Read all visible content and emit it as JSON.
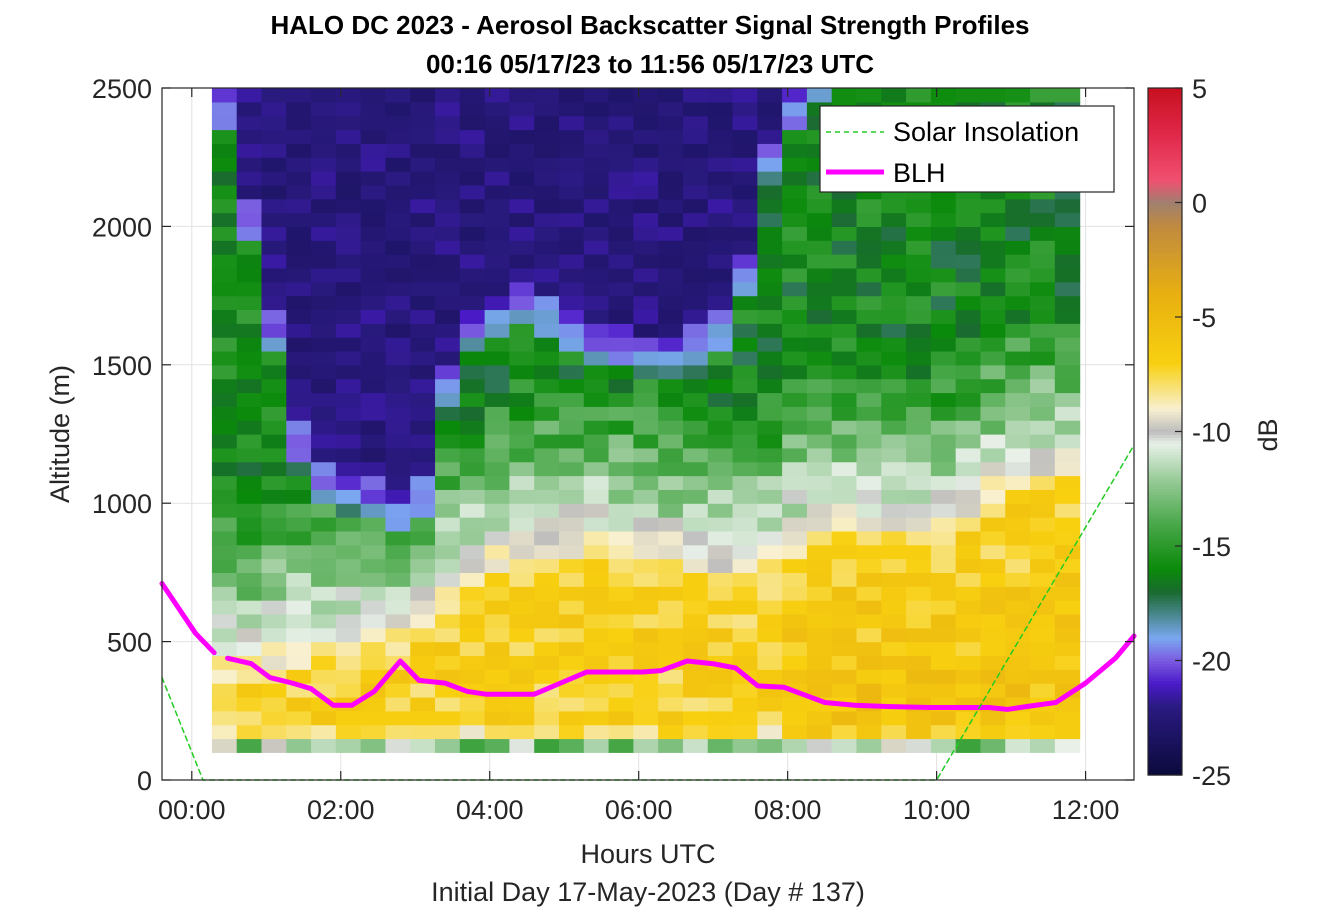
{
  "chart_data": {
    "type": "heatmap",
    "title": "HALO DC 2023 - Aerosol Backscatter Signal Strength Profiles",
    "subtitle": "00:16 05/17/23 to 11:56 05/17/23  UTC",
    "xlabel": "Hours UTC",
    "footer": "Initial Day 17-May-2023 (Day # 137)",
    "ylabel": "Altitude (m)",
    "colorbar_label": "dB",
    "xlim": [
      -0.4,
      12.65
    ],
    "ylim": [
      0,
      2500
    ],
    "xticks": [
      0,
      2,
      4,
      6,
      8,
      10,
      12
    ],
    "xtick_labels": [
      "00:00",
      "02:00",
      "04:00",
      "06:00",
      "08:00",
      "10:00",
      "12:00"
    ],
    "yticks": [
      0,
      500,
      1000,
      1500,
      2000,
      2500
    ],
    "ytick_labels": [
      "0",
      "500",
      "1000",
      "1500",
      "2000",
      "2500"
    ],
    "clim": [
      -25,
      5
    ],
    "cticks": [
      5,
      0,
      -5,
      -10,
      -15,
      -20,
      -25
    ],
    "ctick_labels": [
      "5",
      "0",
      "-5",
      "-10",
      "-15",
      "-20",
      "-25"
    ],
    "grid": true,
    "legend_position": "top-right",
    "legend": [
      "Solar Insolation",
      "BLH"
    ],
    "heatmap_extent": {
      "x": [
        0.27,
        11.92
      ],
      "y": [
        100,
        2500
      ]
    },
    "time_bins": 35,
    "altitude_bins": 48,
    "colormap_stops": [
      {
        "db": -25,
        "color": "#0a0a3c"
      },
      {
        "db": -22,
        "color": "#2a1a80"
      },
      {
        "db": -21,
        "color": "#4a1ac8"
      },
      {
        "db": -20,
        "color": "#7a5ae0"
      },
      {
        "db": -19,
        "color": "#7aa8f0"
      },
      {
        "db": -18,
        "color": "#4a8890"
      },
      {
        "db": -17,
        "color": "#1a6a30"
      },
      {
        "db": -16,
        "color": "#0a8a0a"
      },
      {
        "db": -14,
        "color": "#4aa84a"
      },
      {
        "db": -12,
        "color": "#9ccc9c"
      },
      {
        "db": -10.5,
        "color": "#e8f0e8"
      },
      {
        "db": -10,
        "color": "#bcbcbc"
      },
      {
        "db": -9,
        "color": "#f8f0d0"
      },
      {
        "db": -7,
        "color": "#f8d010"
      },
      {
        "db": -4,
        "color": "#e8b010"
      },
      {
        "db": -1,
        "color": "#c08a40"
      },
      {
        "db": 0,
        "color": "#a08070"
      },
      {
        "db": 1,
        "color": "#f05070"
      },
      {
        "db": 3,
        "color": "#e0284a"
      },
      {
        "db": 5,
        "color": "#c81020"
      }
    ],
    "series": [
      {
        "name": "BLH",
        "color": "#ff00ff",
        "segments": [
          {
            "x": [
              -0.4,
              -0.2,
              0.05,
              0.3
            ],
            "y": [
              710,
              630,
              530,
              460
            ]
          },
          {
            "x": [
              0.48,
              0.8,
              1.05,
              1.35,
              1.6,
              1.9,
              2.15,
              2.45,
              2.8,
              3.05,
              3.4,
              3.7,
              3.95,
              4.2,
              4.6,
              4.95,
              5.3,
              5.65,
              6.05,
              6.3,
              6.65,
              7.0,
              7.3,
              7.6,
              7.95,
              8.2,
              8.5,
              8.9,
              9.4,
              9.9,
              10.4,
              10.7,
              10.95,
              11.2,
              11.6,
              12.0,
              12.4,
              12.65
            ],
            "y": [
              440,
              420,
              370,
              350,
              330,
              270,
              270,
              320,
              430,
              360,
              350,
              320,
              310,
              310,
              310,
              350,
              390,
              390,
              390,
              395,
              430,
              420,
              405,
              340,
              335,
              310,
              280,
              270,
              265,
              262,
              262,
              262,
              255,
              265,
              280,
              350,
              440,
              520
            ]
          }
        ]
      },
      {
        "name": "Solar Insolation",
        "color": "#22cc22",
        "x": [
          -0.4,
          0.15,
          10.0,
          12.65
        ],
        "y": [
          370,
          0,
          0,
          1210
        ]
      }
    ]
  }
}
